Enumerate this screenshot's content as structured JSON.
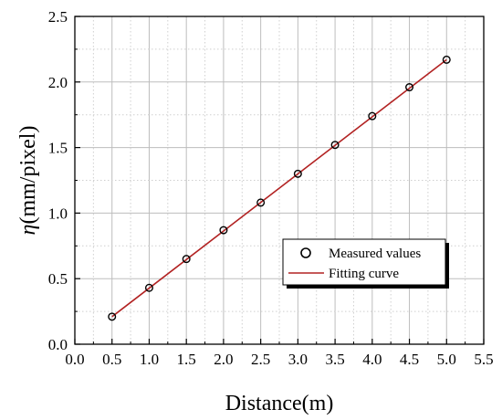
{
  "chart_data": {
    "type": "scatter",
    "xlabel": "Distance(m)",
    "ylabel_symbol": "η",
    "ylabel_unit": "(mm/pixel)",
    "xlim": [
      0.0,
      5.5
    ],
    "ylim": [
      0.0,
      2.5
    ],
    "x_ticks": [
      "0.0",
      "0.5",
      "1.0",
      "1.5",
      "2.0",
      "2.5",
      "3.0",
      "3.5",
      "4.0",
      "4.5",
      "5.0",
      "5.5"
    ],
    "y_ticks": [
      "0.0",
      "0.5",
      "1.0",
      "1.5",
      "2.0",
      "2.5"
    ],
    "grid": true,
    "legend_position": "lower-right",
    "series": [
      {
        "name": "Measured values",
        "kind": "scatter",
        "marker": "open-circle",
        "color": "#000000",
        "x": [
          0.5,
          1.0,
          1.5,
          2.0,
          2.5,
          3.0,
          3.5,
          4.0,
          4.5,
          5.0
        ],
        "y": [
          0.21,
          0.43,
          0.65,
          0.87,
          1.08,
          1.3,
          1.52,
          1.74,
          1.96,
          2.17
        ]
      },
      {
        "name": "Fitting curve",
        "kind": "line",
        "color": "#b22222",
        "x": [
          0.5,
          5.0
        ],
        "y": [
          0.21,
          2.17
        ]
      }
    ]
  }
}
